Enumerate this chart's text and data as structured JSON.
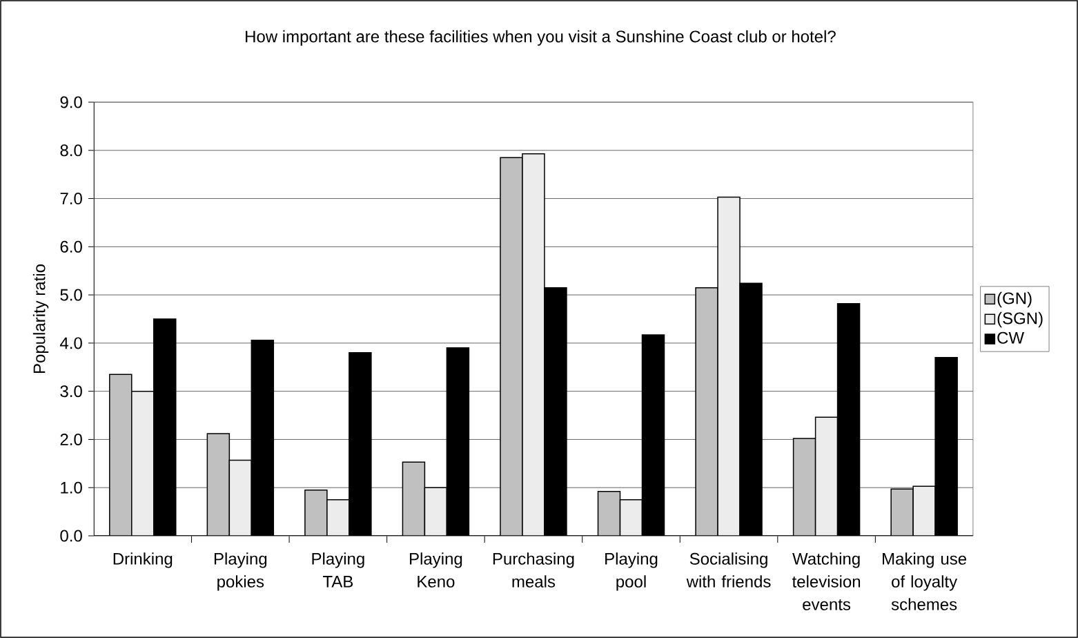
{
  "chart_data": {
    "type": "bar",
    "title": "How important are these facilities when you visit a Sunshine Coast club or hotel?",
    "ylabel": "Popularity ratio",
    "categories": [
      "Drinking",
      "Playing pokies",
      "Playing TAB",
      "Playing Keno",
      "Purchasing meals",
      "Playing pool",
      "Socialising with friends",
      "Watching television events",
      "Making use of loyalty schemes"
    ],
    "series": [
      {
        "name": "(GN)",
        "color": "#c0c0c0",
        "values": [
          3.35,
          2.12,
          0.95,
          1.53,
          7.85,
          0.92,
          5.15,
          2.02,
          0.97
        ]
      },
      {
        "name": "(SGN)",
        "color": "#ececec",
        "values": [
          3.0,
          1.57,
          0.75,
          1.0,
          7.93,
          0.75,
          7.03,
          2.46,
          1.03
        ]
      },
      {
        "name": "CW",
        "color": "#000000",
        "values": [
          4.5,
          4.06,
          3.8,
          3.9,
          5.15,
          4.17,
          5.24,
          4.82,
          3.7
        ]
      }
    ],
    "ylim": [
      0,
      9
    ],
    "yticks": [
      {
        "value": 0,
        "label": "0.0"
      },
      {
        "value": 1,
        "label": "1.0"
      },
      {
        "value": 2,
        "label": "2.0"
      },
      {
        "value": 3,
        "label": "3.0"
      },
      {
        "value": 4,
        "label": "4.0"
      },
      {
        "value": 5,
        "label": "5.0"
      },
      {
        "value": 6,
        "label": "6.0"
      },
      {
        "value": 7,
        "label": "7.0"
      },
      {
        "value": 8,
        "label": "8.0"
      },
      {
        "value": 9,
        "label": "9.0"
      }
    ],
    "grid": "y",
    "legend": "right"
  }
}
